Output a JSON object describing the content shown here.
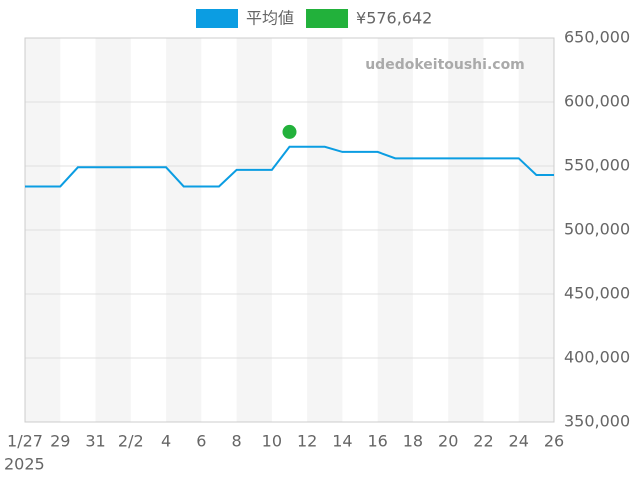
{
  "chart_data": {
    "type": "line",
    "categories": [
      "1/27",
      null,
      "29",
      null,
      "31",
      null,
      "2/2",
      null,
      "4",
      null,
      "6",
      null,
      "8",
      null,
      "10",
      null,
      "12",
      null,
      "14",
      null,
      "16",
      null,
      "18",
      null,
      "20",
      null,
      "22",
      null,
      "24",
      null,
      "26"
    ],
    "year_label": "2025",
    "watermark": "udedokeitoushi.com",
    "series": [
      {
        "name": "平均値",
        "color": "#0b9de2",
        "values": [
          534000,
          534000,
          534000,
          549000,
          549000,
          549000,
          549000,
          549000,
          549000,
          534000,
          534000,
          534000,
          547000,
          547000,
          547000,
          565000,
          565000,
          565000,
          561000,
          561000,
          561000,
          556000,
          556000,
          556000,
          556000,
          556000,
          556000,
          556000,
          556000,
          543000,
          543000
        ]
      },
      {
        "name": "¥576,642",
        "color": "#22b13b",
        "values": [
          null,
          null,
          null,
          null,
          null,
          null,
          null,
          null,
          null,
          null,
          null,
          null,
          null,
          null,
          null,
          576642,
          null,
          null,
          null,
          null,
          null,
          null,
          null,
          null,
          null,
          null,
          null,
          null,
          null,
          null,
          null
        ]
      }
    ],
    "ylim": [
      350000,
      650000
    ],
    "yticks": [
      {
        "value": 350000,
        "label": "350,000"
      },
      {
        "value": 400000,
        "label": "400,000"
      },
      {
        "value": 450000,
        "label": "450,000"
      },
      {
        "value": 500000,
        "label": "500,000"
      },
      {
        "value": 550000,
        "label": "550,000"
      },
      {
        "value": 600000,
        "label": "600,000"
      },
      {
        "value": 650000,
        "label": "650,000"
      }
    ],
    "grid": true,
    "legend": "top"
  }
}
